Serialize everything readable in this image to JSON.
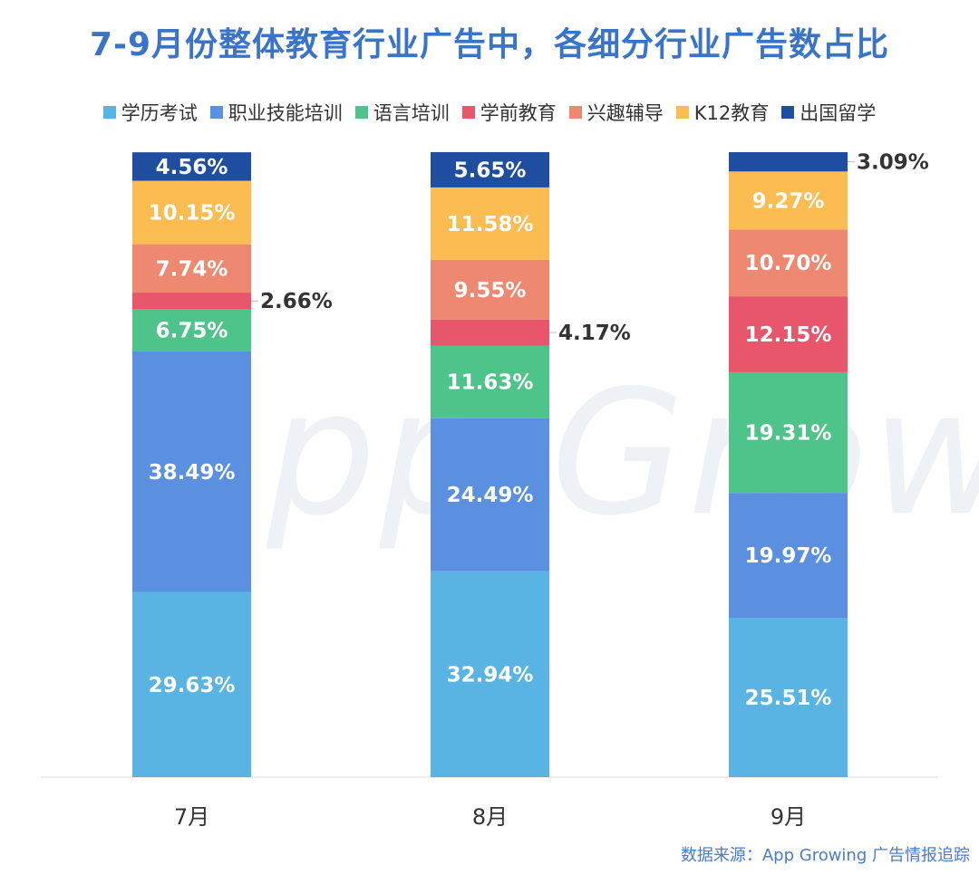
{
  "title": "7-9月份整体教育行业广告中，各细分行业广告数占比",
  "source": "数据来源：App Growing 广告情报追踪",
  "watermark": "App Growing",
  "colors": {
    "学历考试": "#59b4e3",
    "职业技能培训": "#5b8fdf",
    "语言培训": "#4ec48b",
    "学前教育": "#e8566c",
    "兴趣辅导": "#ee8870",
    "K12教育": "#fbbc51",
    "出国留学": "#1f4ea1"
  },
  "chart_data": {
    "type": "bar",
    "stacked": true,
    "categories": [
      "7月",
      "8月",
      "9月"
    ],
    "series": [
      {
        "name": "学历考试",
        "values": [
          29.63,
          32.94,
          25.51
        ],
        "labels": [
          "29.63%",
          "32.94%",
          "25.51%"
        ]
      },
      {
        "name": "职业技能培训",
        "values": [
          38.49,
          24.49,
          19.97
        ],
        "labels": [
          "38.49%",
          "24.49%",
          "19.97%"
        ]
      },
      {
        "name": "语言培训",
        "values": [
          6.75,
          11.63,
          19.31
        ],
        "labels": [
          "6.75%",
          "11.63%",
          "19.31%"
        ]
      },
      {
        "name": "学前教育",
        "values": [
          2.66,
          4.17,
          12.15
        ],
        "labels": [
          "2.66%",
          "4.17%",
          "12.15%"
        ]
      },
      {
        "name": "兴趣辅导",
        "values": [
          7.74,
          9.55,
          10.7
        ],
        "labels": [
          "7.74%",
          "9.55%",
          "10.70%"
        ]
      },
      {
        "name": "K12教育",
        "values": [
          10.15,
          11.58,
          9.27
        ],
        "labels": [
          "10.15%",
          "11.58%",
          "9.27%"
        ]
      },
      {
        "name": "出国留学",
        "values": [
          4.56,
          5.65,
          3.09
        ],
        "labels": [
          "4.56%",
          "5.65%",
          "3.09%"
        ]
      }
    ],
    "ylim": [
      0,
      100
    ],
    "grid": false,
    "legend_position": "top",
    "title": "7-9月份整体教育行业广告中，各细分行业广告数占比"
  }
}
